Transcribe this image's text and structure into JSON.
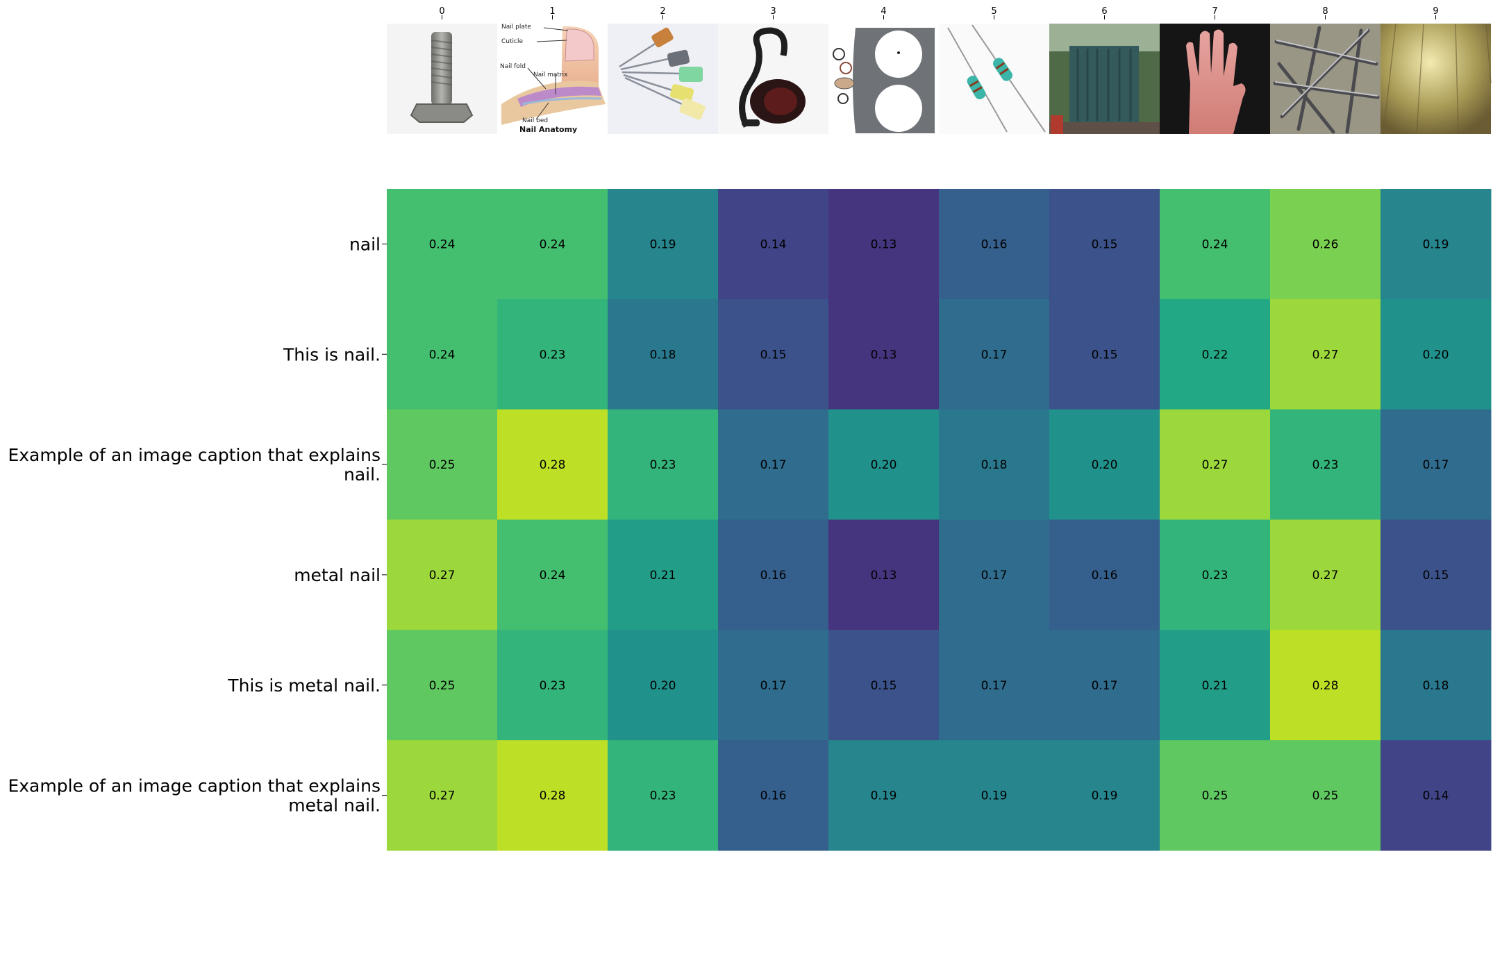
{
  "chart_data": {
    "type": "heatmap",
    "title": "",
    "xlabel": "",
    "ylabel": "",
    "x_tick_labels": [
      "0",
      "1",
      "2",
      "3",
      "4",
      "5",
      "6",
      "7",
      "8",
      "9"
    ],
    "y_tick_labels": [
      [
        "nail"
      ],
      [
        "This is nail."
      ],
      [
        "Example of an image caption that explains",
        "nail."
      ],
      [
        "metal nail"
      ],
      [
        "This is metal nail."
      ],
      [
        "Example of an image caption that explains",
        "metal nail."
      ]
    ],
    "column_images": [
      "hex-bolt",
      "nail-anatomy-diagram",
      "syringe-needles",
      "vacuum-cleaner",
      "engine-head-gasket",
      "resistors",
      "electrical-transformer",
      "human-hand",
      "metal-nails-pile",
      "wooden-floor"
    ],
    "nail_anatomy_labels": [
      "Nail plate",
      "Cuticle",
      "Nail fold",
      "Nail matrix",
      "Nail bed",
      "Nail Anatomy"
    ],
    "values": [
      [
        0.24,
        0.24,
        0.19,
        0.14,
        0.13,
        0.16,
        0.15,
        0.24,
        0.26,
        0.19
      ],
      [
        0.24,
        0.23,
        0.18,
        0.15,
        0.13,
        0.17,
        0.15,
        0.22,
        0.27,
        0.2
      ],
      [
        0.25,
        0.28,
        0.23,
        0.17,
        0.2,
        0.18,
        0.2,
        0.27,
        0.23,
        0.17
      ],
      [
        0.27,
        0.24,
        0.21,
        0.16,
        0.13,
        0.17,
        0.16,
        0.23,
        0.27,
        0.15
      ],
      [
        0.25,
        0.23,
        0.2,
        0.17,
        0.15,
        0.17,
        0.17,
        0.21,
        0.28,
        0.18
      ],
      [
        0.27,
        0.28,
        0.23,
        0.16,
        0.19,
        0.19,
        0.19,
        0.25,
        0.25,
        0.14
      ]
    ],
    "colormap": "viridis",
    "color_range": [
      0.1,
      0.3
    ],
    "value_format": "2 decimals",
    "colorbar": false
  }
}
